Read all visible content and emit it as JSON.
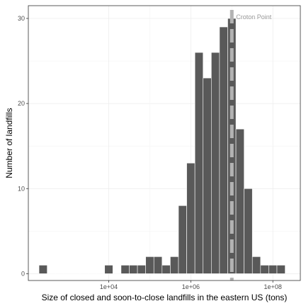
{
  "chart_data": {
    "type": "histogram",
    "xlabel": "Size of closed and soon-to-close landfills in the eastern US (tons)",
    "ylabel": "Number of landfills",
    "x_scale": "log10",
    "x_tick_values": [
      10000,
      1000000,
      100000000
    ],
    "x_tick_labels": [
      "1e+04",
      "1e+06",
      "1e+08"
    ],
    "y_ticks": [
      0,
      10,
      20,
      30
    ],
    "ylim": [
      -0.8,
      31.5
    ],
    "xlim_log10": [
      2.04,
      8.67
    ],
    "grid": true,
    "bin_centers_log10": [
      2.4,
      2.6,
      2.8,
      3.0,
      3.2,
      3.4,
      3.6,
      3.8,
      4.0,
      4.2,
      4.4,
      4.6,
      4.8,
      5.0,
      5.2,
      5.4,
      5.6,
      5.8,
      6.0,
      6.2,
      6.4,
      6.6,
      6.8,
      7.0,
      7.2,
      7.4,
      7.6,
      7.8,
      8.0,
      8.2
    ],
    "bin_width_log10": 0.2,
    "counts": [
      1,
      0,
      0,
      0,
      0,
      0,
      0,
      0,
      1,
      0,
      1,
      1,
      1,
      2,
      2,
      1,
      2,
      8,
      13,
      26,
      23,
      26,
      29,
      30,
      17,
      10,
      2,
      1,
      1,
      1
    ],
    "bar_color": "#595959",
    "bar_edge_color": "#ffffff",
    "reference_line": {
      "label": "Croton Point",
      "x_value": 10000000,
      "color": "#b3b3b3",
      "style": "dashed"
    }
  }
}
